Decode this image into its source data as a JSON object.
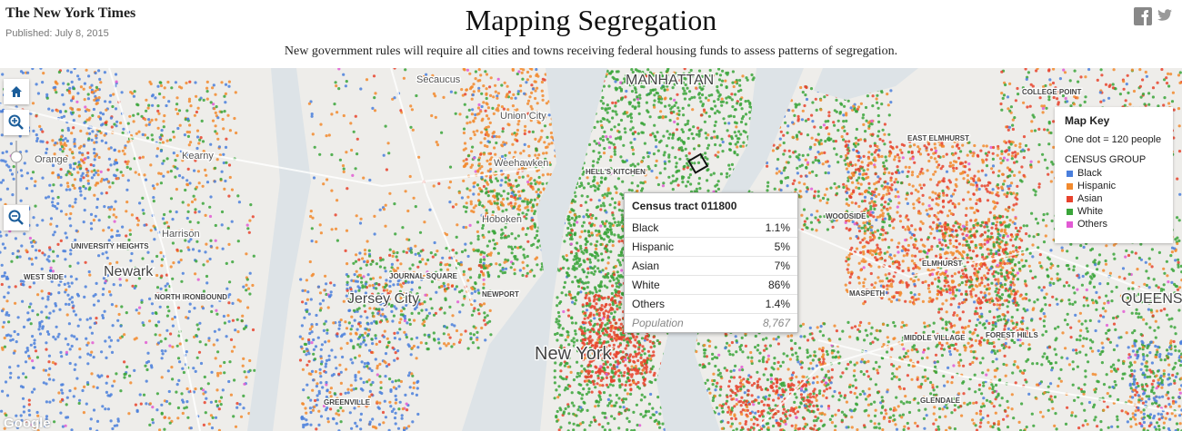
{
  "header": {
    "logo": "The New York Times",
    "published": "Published: July 8, 2015",
    "title": "Mapping Segregation",
    "subtitle": "New government rules will require all cities and towns receiving federal housing funds to assess patterns of segregation."
  },
  "map": {
    "labels": [
      "Secaucus",
      "Union City",
      "Weehawken",
      "Hoboken",
      "Harrison",
      "Kearny",
      "Orange",
      "Newark",
      "Jersey City",
      "New York",
      "MANHATTAN",
      "HELL'S KITCHEN",
      "JOURNAL SQUARE",
      "NEWPORT",
      "UNIVERSITY HEIGHTS",
      "WEST SIDE",
      "NORTH IRONBOUND",
      "GREENVILLE",
      "EAST ELMHURST",
      "COLLEGE POINT",
      "WOODSIDE",
      "ELMHURST",
      "MASPETH",
      "MIDDLE VILLAGE",
      "FOREST HILLS",
      "GLENDALE",
      "QUEENS"
    ],
    "attribution": "Google"
  },
  "tooltip": {
    "title": "Census tract 011800",
    "rows": [
      [
        "Black",
        "1.1%"
      ],
      [
        "Hispanic",
        "5%"
      ],
      [
        "Asian",
        "7%"
      ],
      [
        "White",
        "86%"
      ],
      [
        "Others",
        "1.4%"
      ]
    ],
    "population": [
      "Population",
      "8,767"
    ]
  },
  "legend": {
    "title": "Map Key",
    "note": "One dot = 120 people",
    "group_title": "CENSUS GROUP",
    "items": [
      {
        "name": "Black",
        "color": "#4a7fdc"
      },
      {
        "name": "Hispanic",
        "color": "#f28a2e"
      },
      {
        "name": "Asian",
        "color": "#e8432d"
      },
      {
        "name": "White",
        "color": "#3aa53a"
      },
      {
        "name": "Others",
        "color": "#e25ad4"
      }
    ]
  }
}
